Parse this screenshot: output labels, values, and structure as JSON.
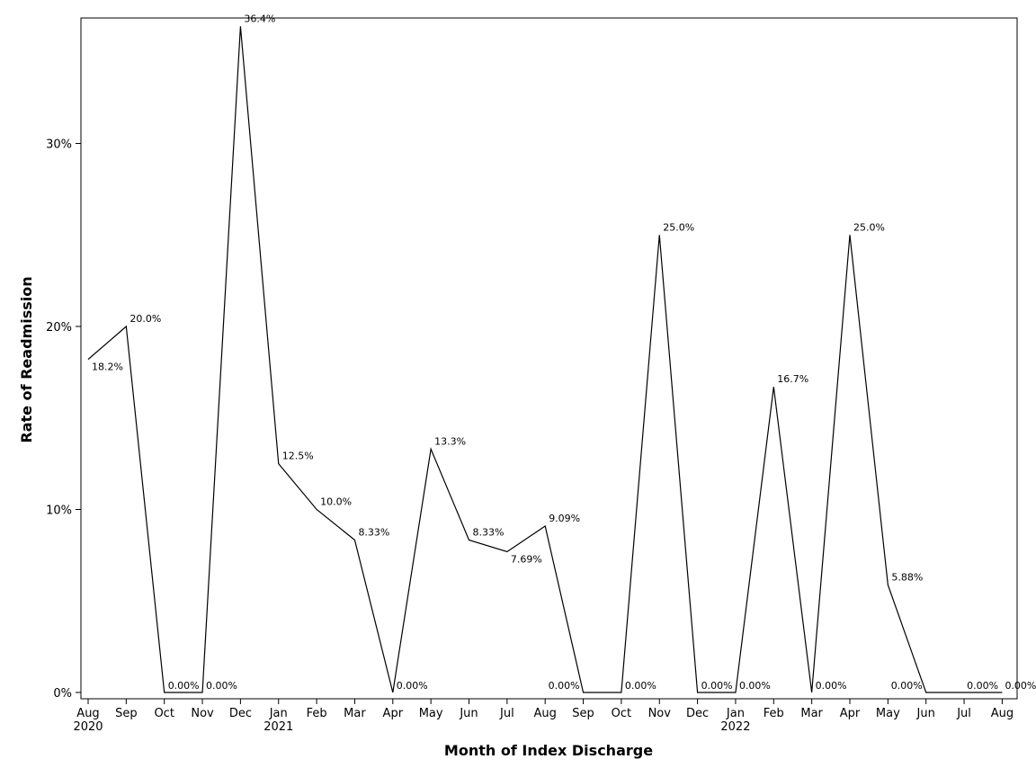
{
  "chart_data": {
    "type": "line",
    "xlabel": "Month of Index Discharge",
    "ylabel": "Rate of Readmission",
    "ylim": [
      0,
      36.4
    ],
    "y_ticks": [
      {
        "value": 0,
        "label": "0%"
      },
      {
        "value": 10,
        "label": "10%"
      },
      {
        "value": 20,
        "label": "20%"
      },
      {
        "value": 30,
        "label": "30%"
      }
    ],
    "categories": [
      {
        "month": "Aug",
        "year": "2020"
      },
      {
        "month": "Sep",
        "year": ""
      },
      {
        "month": "Oct",
        "year": ""
      },
      {
        "month": "Nov",
        "year": ""
      },
      {
        "month": "Dec",
        "year": ""
      },
      {
        "month": "Jan",
        "year": "2021"
      },
      {
        "month": "Feb",
        "year": ""
      },
      {
        "month": "Mar",
        "year": ""
      },
      {
        "month": "Apr",
        "year": ""
      },
      {
        "month": "May",
        "year": ""
      },
      {
        "month": "Jun",
        "year": ""
      },
      {
        "month": "Jul",
        "year": ""
      },
      {
        "month": "Aug",
        "year": ""
      },
      {
        "month": "Sep",
        "year": ""
      },
      {
        "month": "Oct",
        "year": ""
      },
      {
        "month": "Nov",
        "year": ""
      },
      {
        "month": "Dec",
        "year": ""
      },
      {
        "month": "Jan",
        "year": "2022"
      },
      {
        "month": "Feb",
        "year": ""
      },
      {
        "month": "Mar",
        "year": ""
      },
      {
        "month": "Apr",
        "year": ""
      },
      {
        "month": "May",
        "year": ""
      },
      {
        "month": "Jun",
        "year": ""
      },
      {
        "month": "Jul",
        "year": ""
      },
      {
        "month": "Aug",
        "year": ""
      }
    ],
    "values": [
      18.2,
      20.0,
      0,
      0,
      36.4,
      12.5,
      10.0,
      8.33,
      0,
      13.3,
      8.33,
      7.69,
      9.09,
      0,
      0,
      25.0,
      0,
      0,
      16.7,
      0,
      25.0,
      5.88,
      0,
      0,
      0
    ],
    "data_labels": [
      "18.2%",
      "20.0%",
      "0.00%",
      "0.00%",
      "36.4%",
      "12.5%",
      "10.0%",
      "8.33%",
      "0.00%",
      "13.3%",
      "8.33%",
      "7.69%",
      "9.09%",
      "0.00%",
      "0.00%",
      "25.0%",
      "0.00%",
      "0.00%",
      "16.7%",
      "0.00%",
      "25.0%",
      "5.88%",
      "0.00%",
      "0.00%",
      "0.00%"
    ],
    "grid": false,
    "legend": "none"
  }
}
